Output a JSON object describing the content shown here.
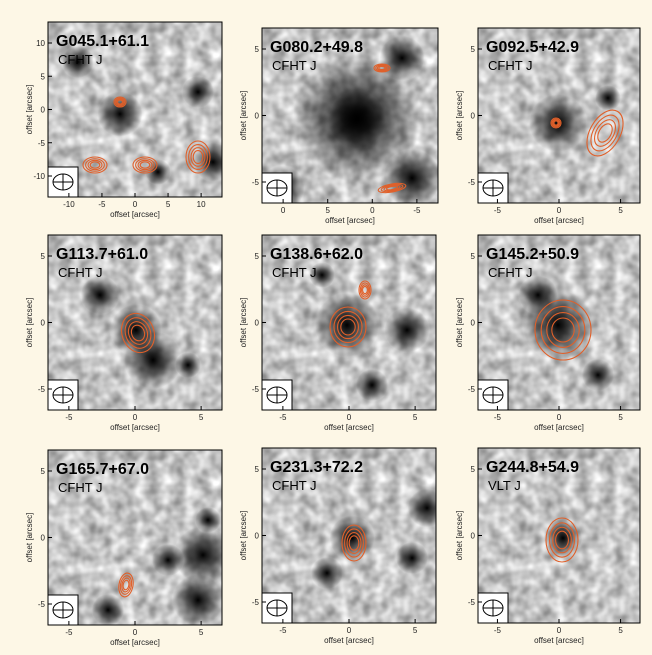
{
  "axis_label": "offset [arcsec]",
  "panels": [
    {
      "title": "G045.1+61.1",
      "subtitle": "CFHT J",
      "yticks": [
        "10",
        "5",
        "0",
        "-5",
        "-10"
      ],
      "xticks": [
        "-10",
        "-5",
        "0",
        "5",
        "10"
      ]
    },
    {
      "title": "G080.2+49.8",
      "subtitle": "CFHT J",
      "yticks": [
        "5",
        "0",
        "-5"
      ],
      "xticks": [
        "0",
        "5",
        "0",
        "-5"
      ]
    },
    {
      "title": "G092.5+42.9",
      "subtitle": "CFHT J",
      "yticks": [
        "5",
        "0",
        "-5"
      ],
      "xticks": [
        "-5",
        "0",
        "5"
      ]
    },
    {
      "title": "G113.7+61.0",
      "subtitle": "CFHT J",
      "yticks": [
        "5",
        "0",
        "-5"
      ],
      "xticks": [
        "-5",
        "0",
        "5"
      ]
    },
    {
      "title": "G138.6+62.0",
      "subtitle": "CFHT J",
      "yticks": [
        "5",
        "0",
        "-5"
      ],
      "xticks": [
        "-5",
        "0",
        "5"
      ]
    },
    {
      "title": "G145.2+50.9",
      "subtitle": "CFHT J",
      "yticks": [
        "5",
        "0",
        "-5"
      ],
      "xticks": [
        "-5",
        "0",
        "5"
      ]
    },
    {
      "title": "G165.7+67.0",
      "subtitle": "CFHT J",
      "yticks": [
        "5",
        "0",
        "-5"
      ],
      "xticks": [
        "-5",
        "0",
        "5"
      ]
    },
    {
      "title": "G231.3+72.2",
      "subtitle": "CFHT J",
      "yticks": [
        "5",
        "0",
        "-5"
      ],
      "xticks": [
        "-5",
        "0",
        "5"
      ]
    },
    {
      "title": "G244.8+54.9",
      "subtitle": "VLT J",
      "yticks": [
        "5",
        "0",
        "-5"
      ],
      "xticks": [
        "-5",
        "0",
        "5"
      ]
    }
  ]
}
